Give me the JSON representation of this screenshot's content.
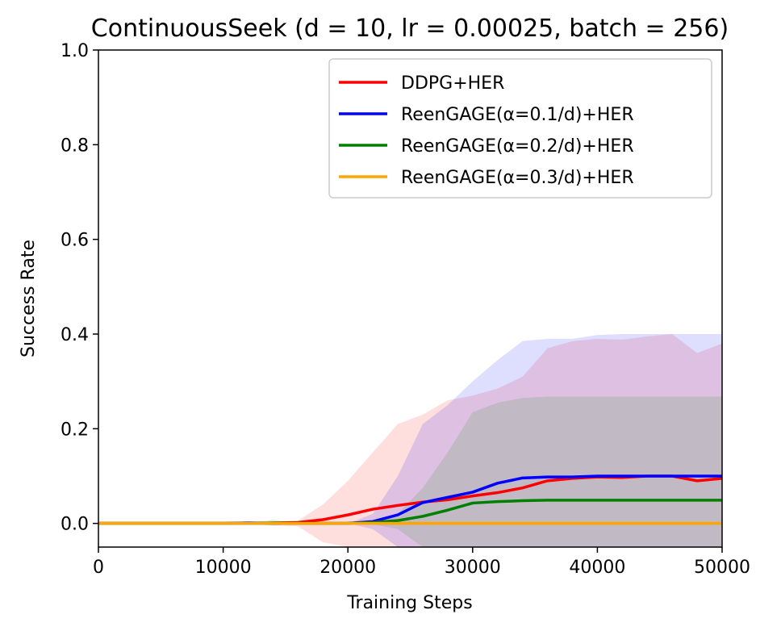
{
  "chart_data": {
    "type": "line",
    "title": "ContinuousSeek (d = 10, lr = 0.00025, batch = 256)",
    "xlabel": "Training Steps",
    "ylabel": "Success Rate",
    "xlim": [
      0,
      50000
    ],
    "ylim": [
      -0.05,
      1.0
    ],
    "x_ticks": [
      0,
      10000,
      20000,
      30000,
      40000,
      50000
    ],
    "y_ticks": [
      0.0,
      0.2,
      0.4,
      0.6,
      0.8,
      1.0
    ],
    "x_tick_labels": [
      "0",
      "10000",
      "20000",
      "30000",
      "40000",
      "50000"
    ],
    "y_tick_labels": [
      "0.0",
      "0.2",
      "0.4",
      "0.6",
      "0.8",
      "1.0"
    ],
    "grid": false,
    "legend_position": "top-right",
    "x": [
      0,
      2000,
      4000,
      6000,
      8000,
      10000,
      12000,
      14000,
      16000,
      18000,
      20000,
      22000,
      24000,
      26000,
      28000,
      30000,
      32000,
      34000,
      36000,
      38000,
      40000,
      42000,
      44000,
      46000,
      48000,
      50000
    ],
    "series": [
      {
        "name": "DDPG+HER",
        "color": "#ff0000",
        "values": [
          0,
          0,
          0,
          0,
          0,
          0,
          0,
          0.001,
          0.002,
          0.008,
          0.018,
          0.03,
          0.038,
          0.045,
          0.05,
          0.058,
          0.065,
          0.075,
          0.09,
          0.095,
          0.098,
          0.097,
          0.1,
          0.1,
          0.09,
          0.095
        ],
        "upper": [
          0,
          0,
          0,
          0,
          0,
          0,
          0.002,
          0.004,
          0.006,
          0.04,
          0.09,
          0.15,
          0.21,
          0.23,
          0.26,
          0.27,
          0.285,
          0.31,
          0.37,
          0.385,
          0.39,
          0.388,
          0.395,
          0.4,
          0.36,
          0.38
        ],
        "lower": [
          0,
          0,
          0,
          0,
          0,
          0,
          -0.002,
          -0.004,
          -0.006,
          -0.04,
          -0.08,
          -0.1,
          -0.1,
          -0.1,
          -0.1,
          -0.1,
          -0.1,
          -0.1,
          -0.1,
          -0.1,
          -0.1,
          -0.1,
          -0.1,
          -0.1,
          -0.1,
          -0.1
        ]
      },
      {
        "name": "ReenGAGE(α=0.1/d)+HER",
        "color": "#0000ff",
        "values": [
          0,
          0,
          0,
          0,
          0,
          0,
          0.001,
          0,
          0,
          0,
          0,
          0.004,
          0.018,
          0.044,
          0.055,
          0.066,
          0.085,
          0.096,
          0.098,
          0.098,
          0.1,
          0.1,
          0.1,
          0.1,
          0.1,
          0.1
        ],
        "upper": [
          0,
          0,
          0,
          0,
          0,
          0,
          0.005,
          0.003,
          0,
          0,
          0,
          0.02,
          0.1,
          0.21,
          0.25,
          0.3,
          0.345,
          0.385,
          0.39,
          0.39,
          0.398,
          0.4,
          0.4,
          0.4,
          0.4,
          0.4
        ],
        "lower": [
          0,
          0,
          0,
          0,
          0,
          0,
          -0.003,
          -0.003,
          0,
          0,
          0,
          -0.012,
          -0.06,
          -0.1,
          -0.1,
          -0.1,
          -0.1,
          -0.1,
          -0.1,
          -0.1,
          -0.1,
          -0.1,
          -0.1,
          -0.1,
          -0.1,
          -0.1
        ]
      },
      {
        "name": "ReenGAGE(α=0.2/d)+HER",
        "color": "#008000",
        "values": [
          0,
          0,
          0,
          0,
          0,
          0,
          0,
          0.001,
          0,
          0,
          0,
          0.002,
          0.006,
          0.015,
          0.028,
          0.043,
          0.046,
          0.048,
          0.049,
          0.049,
          0.049,
          0.049,
          0.049,
          0.049,
          0.049,
          0.049
        ],
        "upper": [
          0,
          0,
          0,
          0,
          0,
          0,
          0,
          0.008,
          0,
          0,
          0,
          0.005,
          0.02,
          0.075,
          0.15,
          0.235,
          0.255,
          0.265,
          0.268,
          0.268,
          0.268,
          0.268,
          0.268,
          0.268,
          0.268,
          0.268
        ],
        "lower": [
          0,
          0,
          0,
          0,
          0,
          0,
          0,
          -0.005,
          0,
          0,
          0,
          -0.002,
          -0.012,
          -0.05,
          -0.08,
          -0.1,
          -0.1,
          -0.1,
          -0.1,
          -0.1,
          -0.1,
          -0.1,
          -0.1,
          -0.1,
          -0.1,
          -0.1
        ]
      },
      {
        "name": "ReenGAGE(α=0.3/d)+HER",
        "color": "#ffa500",
        "values": [
          0,
          0,
          0,
          0,
          0,
          0,
          0,
          0,
          0,
          0,
          0,
          0,
          0,
          0,
          0,
          0,
          0,
          0,
          0,
          0,
          0,
          0,
          0,
          0,
          0,
          0
        ],
        "upper": [
          0,
          0,
          0,
          0,
          0,
          0,
          0,
          0,
          0,
          0,
          0,
          0,
          0,
          0,
          0,
          0,
          0,
          0,
          0,
          0,
          0,
          0,
          0,
          0,
          0,
          0
        ],
        "lower": [
          0,
          0,
          0,
          0,
          0,
          0,
          0,
          0,
          0,
          0,
          0,
          0,
          0,
          0,
          0,
          0,
          0,
          0,
          0,
          0,
          0,
          0,
          0,
          0,
          0,
          0
        ]
      }
    ]
  }
}
